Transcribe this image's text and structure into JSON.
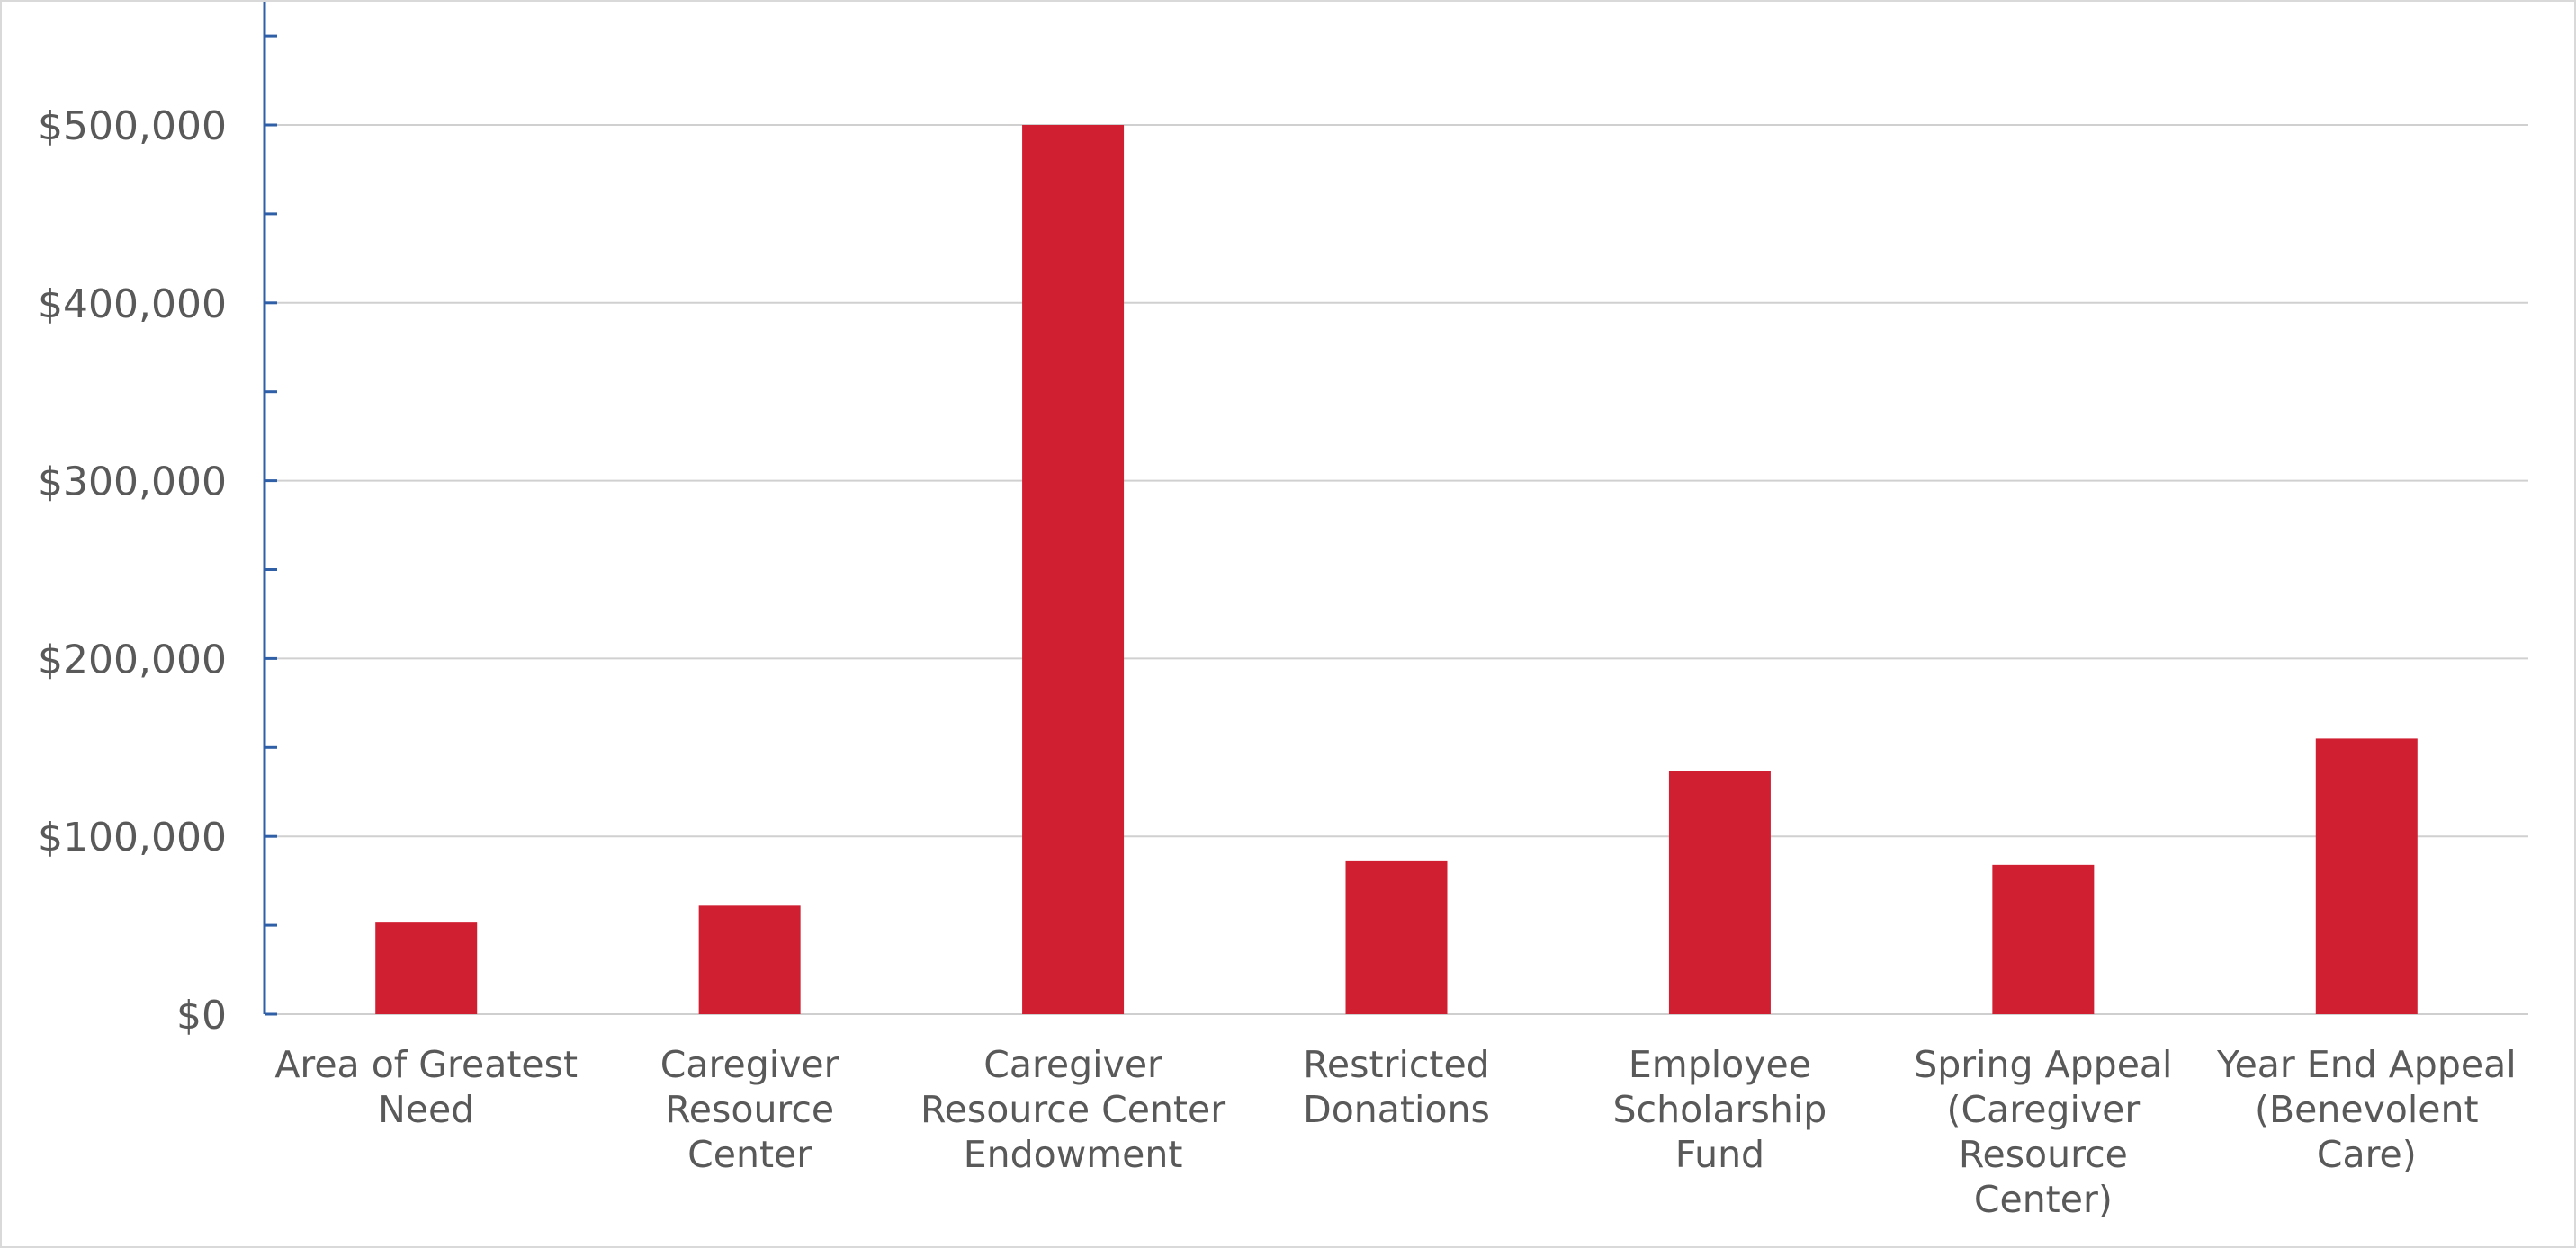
{
  "chart_data": {
    "type": "bar",
    "categories": [
      [
        "Area of Greatest",
        "Need"
      ],
      [
        "Caregiver",
        "Resource",
        "Center"
      ],
      [
        "Caregiver",
        "Resource Center",
        "Endowment"
      ],
      [
        "Restricted",
        "Donations"
      ],
      [
        "Employee",
        "Scholarship",
        "Fund"
      ],
      [
        "Spring Appeal",
        "(Caregiver",
        "Resource",
        "Center)"
      ],
      [
        "Year End Appeal",
        "(Benevolent",
        "Care)"
      ]
    ],
    "values": [
      52000,
      61000,
      500000,
      86000,
      137000,
      84000,
      155000
    ],
    "ylim": [
      0,
      560000
    ],
    "yticks": [
      0,
      100000,
      200000,
      300000,
      400000,
      500000
    ],
    "ytick_labels": [
      "$0",
      "$100,000",
      "$200,000",
      "$300,000",
      "$400,000",
      "$500,000"
    ],
    "grid": true,
    "bar_color": "#d11f32",
    "title": "",
    "xlabel": "",
    "ylabel": ""
  }
}
